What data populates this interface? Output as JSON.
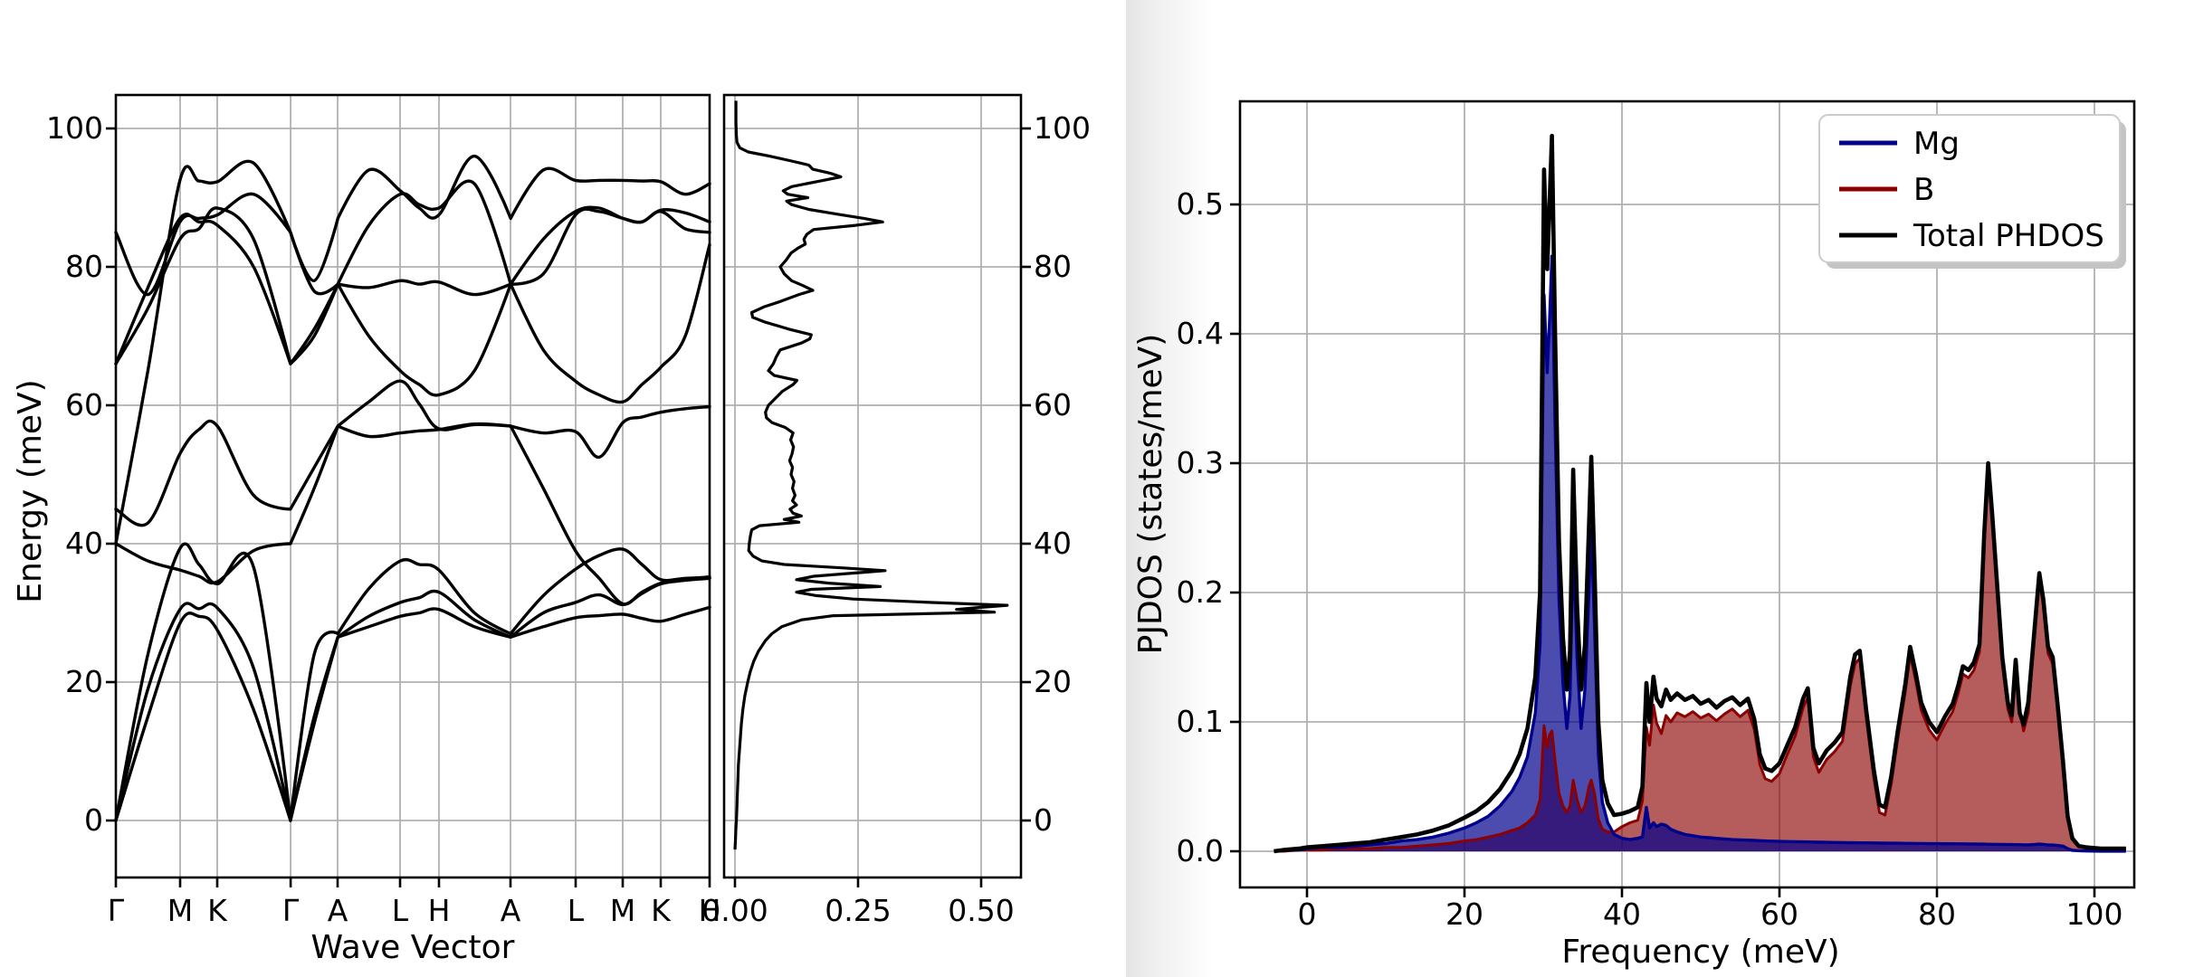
{
  "band_plot": {
    "ylabel": "Energy (meV)",
    "xlabel": "Wave Vector",
    "yticks": [
      "0",
      "20",
      "40",
      "60",
      "80",
      "100"
    ],
    "ytick_values": [
      0,
      20,
      40,
      60,
      80,
      100
    ],
    "xtick_labels": [
      "Γ",
      "M",
      "K",
      "Γ",
      "A",
      "L",
      "H",
      "A",
      "L",
      "M",
      "K",
      "H"
    ]
  },
  "dos_panel": {
    "xtick_labels": [
      "0.00",
      "0.25",
      "0.50"
    ],
    "xtick_values": [
      0.0,
      0.25,
      0.5
    ],
    "ytick_labels_right": [
      "0",
      "20",
      "40",
      "60",
      "80",
      "100"
    ],
    "ytick_values": [
      0,
      20,
      40,
      60,
      80,
      100
    ]
  },
  "pjdos_plot": {
    "xlabel": "Frequency (meV)",
    "ylabel": "PJDOS (states/meV)",
    "xtick_labels": [
      "0",
      "20",
      "40",
      "60",
      "80",
      "100"
    ],
    "xtick_values": [
      0,
      20,
      40,
      60,
      80,
      100
    ],
    "ytick_labels": [
      "0.0",
      "0.1",
      "0.2",
      "0.3",
      "0.4",
      "0.5"
    ],
    "ytick_values": [
      0.0,
      0.1,
      0.2,
      0.3,
      0.4,
      0.5
    ],
    "legend": [
      {
        "label": "Mg",
        "color": "#00008b"
      },
      {
        "label": "B",
        "color": "#8b0000"
      },
      {
        "label": "Total PHDOS",
        "color": "#000000"
      }
    ]
  },
  "colors": {
    "grid": "#b0b0b0",
    "spine": "#000000",
    "band_line": "#000000",
    "mg_line": "#00008b",
    "b_line": "#8b0000",
    "total_line": "#000000",
    "mg_fill": "rgba(0,0,139,0.70)",
    "b_fill": "rgba(139,0,0,0.64)",
    "legend_border": "#cccccc",
    "legend_shadow": "#c4c4c4",
    "divider_dark": "#e4e4e4"
  },
  "chart_data": [
    {
      "id": "phonon_band_structure",
      "type": "line",
      "xlabel": "Wave Vector",
      "ylabel": "Energy (meV)",
      "ylim": [
        -8.3,
        104.8
      ],
      "kpath_labels": [
        "Γ",
        "M",
        "K",
        "Γ",
        "A",
        "L",
        "H",
        "A",
        "L",
        "M",
        "K",
        "H"
      ],
      "kpath_x": [
        0,
        0.1082,
        0.1707,
        0.2943,
        0.3735,
        0.4787,
        0.5442,
        0.6646,
        0.7744,
        0.8537,
        0.9177,
        1.0
      ],
      "branch_x": [
        0,
        0.054,
        0.108,
        0.14,
        0.171,
        0.232,
        0.294,
        0.334,
        0.374,
        0.426,
        0.479,
        0.511,
        0.544,
        0.604,
        0.665,
        0.72,
        0.774,
        0.814,
        0.854,
        0.886,
        0.918,
        0.959,
        1
      ],
      "corner_nodes": [
        6,
        8,
        14
      ],
      "branches": [
        [
          0,
          15,
          28.5,
          29.5,
          27.5,
          16,
          0,
          14,
          26.5,
          28,
          29.5,
          30,
          30.5,
          28,
          26.5,
          28,
          29.3,
          29.6,
          29.8,
          29.2,
          28.8,
          29.8,
          30.8
        ],
        [
          0,
          19,
          30.5,
          30.6,
          30.7,
          22,
          0,
          15,
          26.5,
          29.5,
          31.5,
          32.2,
          33,
          29,
          26.5,
          30,
          31.5,
          32.6,
          31.2,
          32.8,
          34.2,
          34.7,
          35
        ],
        [
          0,
          24,
          39.3,
          37,
          34.2,
          36.6,
          0,
          24,
          27,
          33.5,
          37.5,
          37,
          36.2,
          30,
          27,
          32.5,
          36.3,
          38.3,
          39.2,
          37,
          34.8,
          35,
          35.1
        ],
        [
          40,
          37.5,
          36.2,
          35.3,
          34.5,
          39,
          40,
          48,
          57,
          55.5,
          56,
          56.3,
          56.5,
          57.3,
          57,
          48,
          39,
          35,
          31.3,
          33,
          34.3,
          34.9,
          35.2
        ],
        [
          45,
          43,
          53,
          56.5,
          57,
          47,
          45,
          51,
          57,
          60.5,
          63.5,
          60.2,
          56.6,
          57.2,
          57,
          56,
          56.2,
          52.5,
          57.5,
          58.3,
          59,
          59.5,
          59.8
        ],
        [
          40,
          65,
          92.5,
          92.4,
          92.3,
          95,
          85,
          78,
          87,
          94,
          91,
          88.5,
          87.5,
          96,
          87,
          94,
          92.5,
          92.5,
          92.5,
          92.4,
          92.3,
          90.5,
          92
        ],
        [
          66,
          77,
          87,
          86.5,
          86,
          80,
          66,
          70,
          77.5,
          86,
          90.5,
          89,
          88.5,
          92,
          77.5,
          84,
          88,
          88.5,
          87,
          86.5,
          88.2,
          87.8,
          86.5
        ],
        [
          66,
          74,
          84,
          85.5,
          88.5,
          84,
          66,
          71,
          77.5,
          70,
          65,
          63,
          61.5,
          65,
          77.5,
          68,
          63.5,
          61.5,
          60.5,
          63,
          65.5,
          70,
          83.2
        ],
        [
          85,
          76,
          86.5,
          87,
          87.5,
          90.5,
          85,
          76.5,
          77.5,
          77,
          78,
          77.5,
          77.8,
          76,
          77.5,
          79,
          87.5,
          88,
          87,
          86.5,
          88,
          85.5,
          85
        ]
      ]
    },
    {
      "id": "total_dos_side_panel",
      "type": "line",
      "note": "rotated: DOS value on x, energy on y; curve = phdos series 'Total PHDOS'",
      "xticks": [
        0.0,
        0.25,
        0.5
      ],
      "xlim": [
        -0.022,
        0.581
      ],
      "ylim": [
        -8.3,
        104.8
      ],
      "series_ref": "pjdos.Total PHDOS"
    },
    {
      "id": "pjdos",
      "type": "area",
      "xlabel": "Frequency (meV)",
      "ylabel": "PJDOS (states/meV)",
      "xlim": [
        -8.7,
        104.6
      ],
      "ylim": [
        -0.028,
        0.58
      ],
      "grid": true,
      "legend_position": "upper right",
      "x": [
        -4.2,
        -3,
        -1,
        0,
        2,
        4,
        6,
        8,
        10,
        12,
        14,
        16,
        18,
        20,
        21.5,
        23,
        24.5,
        26,
        27,
        28,
        29,
        29.6,
        30.1,
        30.5,
        30.8,
        31.1,
        31.5,
        32,
        32.5,
        33,
        33.4,
        33.8,
        34.3,
        34.8,
        35.3,
        35.8,
        36.1,
        36.5,
        37,
        37.5,
        38.2,
        39,
        40,
        41,
        42,
        42.6,
        43.1,
        43.5,
        44,
        44.4,
        45,
        45.6,
        46.2,
        47,
        48,
        49,
        50,
        51,
        52,
        53,
        54,
        55,
        56,
        56.8,
        57.5,
        58.2,
        59,
        60,
        61,
        62,
        63,
        63.6,
        64.3,
        65,
        66,
        67,
        68,
        69,
        69.6,
        70.2,
        71,
        72,
        72.7,
        73.4,
        74.2,
        75,
        76,
        76.6,
        77.3,
        78,
        79,
        80,
        81,
        82,
        82.7,
        83.3,
        84,
        84.7,
        85.4,
        86,
        86.5,
        87,
        87.6,
        88.3,
        89,
        89.5,
        90,
        90.5,
        91,
        91.6,
        92.3,
        93,
        93.5,
        94.1,
        94.7,
        95.3,
        96,
        96.6,
        97.2,
        98,
        99,
        100.8,
        102,
        104
      ],
      "series": [
        {
          "name": "Mg",
          "color": "#00008b",
          "values": [
            0,
            0.001,
            0.001,
            0.002,
            0.003,
            0.003,
            0.004,
            0.005,
            0.006,
            0.008,
            0.009,
            0.011,
            0.014,
            0.018,
            0.022,
            0.027,
            0.035,
            0.046,
            0.057,
            0.073,
            0.107,
            0.16,
            0.43,
            0.37,
            0.41,
            0.46,
            0.33,
            0.195,
            0.13,
            0.095,
            0.12,
            0.24,
            0.15,
            0.095,
            0.125,
            0.2,
            0.25,
            0.175,
            0.075,
            0.038,
            0.022,
            0.013,
            0.01,
            0.009,
            0.01,
            0.011,
            0.034,
            0.018,
            0.022,
            0.019,
            0.021,
            0.02,
            0.017,
            0.015,
            0.013,
            0.012,
            0.011,
            0.0105,
            0.01,
            0.0095,
            0.009,
            0.0088,
            0.0086,
            0.0084,
            0.0082,
            0.008,
            0.0078,
            0.0076,
            0.0075,
            0.0074,
            0.0073,
            0.0072,
            0.0071,
            0.007,
            0.0069,
            0.0068,
            0.0067,
            0.0066,
            0.0066,
            0.0065,
            0.0065,
            0.0064,
            0.0063,
            0.0063,
            0.0062,
            0.0062,
            0.0061,
            0.0061,
            0.006,
            0.006,
            0.0059,
            0.0059,
            0.0058,
            0.0058,
            0.0057,
            0.0057,
            0.0056,
            0.0056,
            0.0055,
            0.0055,
            0.0054,
            0.0054,
            0.0053,
            0.0053,
            0.0052,
            0.0052,
            0.0051,
            0.0051,
            0.005,
            0.005,
            0.0052,
            0.0055,
            0.0053,
            0.005,
            0.0048,
            0.0045,
            0.004,
            0.002,
            0.0008,
            0.0004,
            0.0002,
            0.0001,
            0.0001,
            0.0001
          ]
        },
        {
          "name": "B",
          "color": "#8b0000",
          "values": [
            0,
            0,
            0.001,
            0.001,
            0.001,
            0.002,
            0.002,
            0.002,
            0.003,
            0.003,
            0.004,
            0.005,
            0.006,
            0.008,
            0.009,
            0.011,
            0.013,
            0.016,
            0.018,
            0.022,
            0.028,
            0.04,
            0.097,
            0.08,
            0.09,
            0.093,
            0.07,
            0.045,
            0.035,
            0.03,
            0.035,
            0.055,
            0.04,
            0.03,
            0.035,
            0.05,
            0.055,
            0.045,
            0.025,
            0.017,
            0.015,
            0.015,
            0.019,
            0.022,
            0.024,
            0.039,
            0.096,
            0.082,
            0.113,
            0.099,
            0.091,
            0.105,
            0.1,
            0.107,
            0.104,
            0.108,
            0.103,
            0.106,
            0.101,
            0.106,
            0.11,
            0.104,
            0.109,
            0.094,
            0.067,
            0.056,
            0.054,
            0.06,
            0.075,
            0.089,
            0.111,
            0.119,
            0.073,
            0.061,
            0.071,
            0.077,
            0.085,
            0.128,
            0.145,
            0.149,
            0.104,
            0.056,
            0.03,
            0.028,
            0.052,
            0.086,
            0.124,
            0.152,
            0.132,
            0.109,
            0.094,
            0.086,
            0.098,
            0.108,
            0.122,
            0.137,
            0.134,
            0.14,
            0.154,
            0.24,
            0.295,
            0.265,
            0.205,
            0.145,
            0.11,
            0.1,
            0.143,
            0.11,
            0.093,
            0.107,
            0.16,
            0.21,
            0.19,
            0.153,
            0.145,
            0.111,
            0.066,
            0.025,
            0.009,
            0.004,
            0.003,
            0.002,
            0.002,
            0.002
          ]
        },
        {
          "name": "Total PHDOS",
          "color": "#000000",
          "values": [
            0,
            0.001,
            0.002,
            0.003,
            0.004,
            0.005,
            0.006,
            0.007,
            0.009,
            0.011,
            0.013,
            0.016,
            0.02,
            0.026,
            0.031,
            0.038,
            0.048,
            0.062,
            0.075,
            0.095,
            0.135,
            0.2,
            0.527,
            0.45,
            0.5,
            0.553,
            0.4,
            0.24,
            0.165,
            0.125,
            0.155,
            0.295,
            0.19,
            0.125,
            0.16,
            0.25,
            0.305,
            0.22,
            0.1,
            0.055,
            0.037,
            0.028,
            0.029,
            0.031,
            0.034,
            0.05,
            0.13,
            0.1,
            0.135,
            0.118,
            0.112,
            0.125,
            0.117,
            0.122,
            0.117,
            0.12,
            0.114,
            0.117,
            0.111,
            0.116,
            0.119,
            0.113,
            0.118,
            0.102,
            0.075,
            0.064,
            0.062,
            0.068,
            0.082,
            0.096,
            0.118,
            0.126,
            0.08,
            0.068,
            0.078,
            0.084,
            0.092,
            0.135,
            0.152,
            0.155,
            0.11,
            0.062,
            0.036,
            0.034,
            0.058,
            0.092,
            0.13,
            0.158,
            0.138,
            0.115,
            0.1,
            0.092,
            0.104,
            0.114,
            0.128,
            0.143,
            0.14,
            0.146,
            0.16,
            0.245,
            0.3,
            0.262,
            0.21,
            0.15,
            0.115,
            0.105,
            0.148,
            0.107,
            0.098,
            0.115,
            0.165,
            0.215,
            0.195,
            0.158,
            0.15,
            0.115,
            0.07,
            0.027,
            0.01,
            0.004,
            0.003,
            0.002,
            0.002,
            0.002
          ]
        }
      ]
    }
  ]
}
